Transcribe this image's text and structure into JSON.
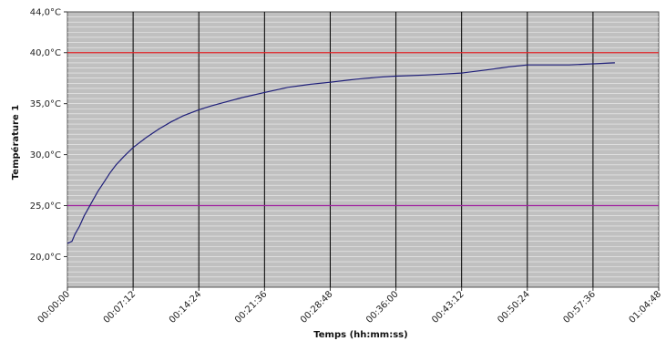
{
  "chart_data": {
    "type": "line",
    "xlabel": "Temps (hh:mm:ss)",
    "ylabel": "Température 1",
    "x_tick_labels": [
      "00:00:00",
      "00:07:12",
      "00:14:24",
      "00:21:36",
      "00:28:48",
      "00:36:00",
      "00:43:12",
      "00:50:24",
      "00:57:36",
      "01:04:48"
    ],
    "x_tick_seconds": [
      0,
      432,
      864,
      1296,
      1728,
      2160,
      2592,
      3024,
      3456,
      3888
    ],
    "xlim_seconds": [
      0,
      3888
    ],
    "y_tick_labels": [
      "20,0°C",
      "25,0°C",
      "30,0°C",
      "35,0°C",
      "40,0°C",
      "44,0°C"
    ],
    "y_tick_values": [
      20,
      25,
      30,
      35,
      40,
      44
    ],
    "ylim": [
      17,
      44
    ],
    "plot_background": "#c0c0c0",
    "minor_gridline_color": "#f0f0f0",
    "major_gridline_color": "#000000",
    "reference_lines": [
      {
        "value": 40.0,
        "color": "#e0262a"
      },
      {
        "value": 25.0,
        "color": "#a020a0"
      }
    ],
    "series": [
      {
        "color": "#1f1f7a",
        "x_seconds": [
          0,
          30,
          50,
          80,
          110,
          140,
          170,
          200,
          240,
          280,
          320,
          370,
          432,
          520,
          600,
          680,
          760,
          864,
          950,
          1050,
          1150,
          1296,
          1450,
          1600,
          1728,
          1900,
          2050,
          2160,
          2350,
          2592,
          2750,
          2900,
          3024,
          3200,
          3300,
          3456,
          3600
        ],
        "y": [
          21.3,
          21.5,
          22.2,
          23.0,
          24.0,
          24.8,
          25.6,
          26.4,
          27.3,
          28.2,
          29.0,
          29.8,
          30.7,
          31.7,
          32.5,
          33.2,
          33.8,
          34.4,
          34.8,
          35.2,
          35.6,
          36.1,
          36.6,
          36.9,
          37.1,
          37.4,
          37.6,
          37.7,
          37.8,
          38.0,
          38.3,
          38.6,
          38.8,
          38.8,
          38.8,
          38.9,
          39.0
        ]
      }
    ]
  }
}
